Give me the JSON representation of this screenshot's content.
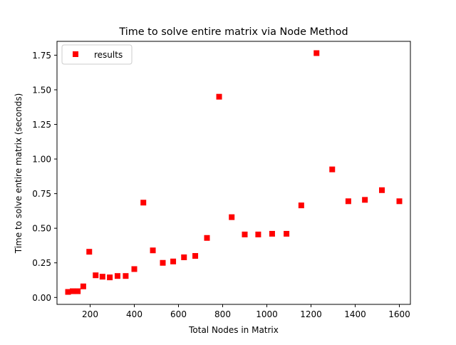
{
  "chart_data": {
    "type": "scatter",
    "title": "Time to solve entire matrix via Node Method",
    "xlabel": "Total Nodes in Matrix",
    "ylabel": "Time to solve entire matrix (seconds)",
    "xlim": [
      50,
      1650
    ],
    "ylim": [
      -0.05,
      1.85
    ],
    "xticks": [
      200,
      400,
      600,
      800,
      1000,
      1200,
      1400,
      1600
    ],
    "xtick_labels": [
      "200",
      "400",
      "600",
      "800",
      "1000",
      "1200",
      "1400",
      "1600"
    ],
    "yticks": [
      0.0,
      0.25,
      0.5,
      0.75,
      1.0,
      1.25,
      1.5,
      1.75
    ],
    "ytick_labels": [
      "0.00",
      "0.25",
      "0.50",
      "0.75",
      "1.00",
      "1.25",
      "1.50",
      "1.75"
    ],
    "grid": false,
    "legend_position": "top-left",
    "series": [
      {
        "name": "results",
        "color": "#ff0000",
        "marker": "square",
        "points": [
          {
            "x": 100,
            "y": 0.04
          },
          {
            "x": 121,
            "y": 0.045
          },
          {
            "x": 144,
            "y": 0.045
          },
          {
            "x": 169,
            "y": 0.08
          },
          {
            "x": 196,
            "y": 0.33
          },
          {
            "x": 225,
            "y": 0.16
          },
          {
            "x": 256,
            "y": 0.15
          },
          {
            "x": 289,
            "y": 0.145
          },
          {
            "x": 324,
            "y": 0.155
          },
          {
            "x": 361,
            "y": 0.155
          },
          {
            "x": 400,
            "y": 0.205
          },
          {
            "x": 441,
            "y": 0.685
          },
          {
            "x": 484,
            "y": 0.34
          },
          {
            "x": 529,
            "y": 0.25
          },
          {
            "x": 576,
            "y": 0.26
          },
          {
            "x": 625,
            "y": 0.29
          },
          {
            "x": 676,
            "y": 0.3
          },
          {
            "x": 729,
            "y": 0.43
          },
          {
            "x": 784,
            "y": 1.45
          },
          {
            "x": 841,
            "y": 0.58
          },
          {
            "x": 900,
            "y": 0.455
          },
          {
            "x": 961,
            "y": 0.455
          },
          {
            "x": 1024,
            "y": 0.46
          },
          {
            "x": 1089,
            "y": 0.46
          },
          {
            "x": 1156,
            "y": 0.665
          },
          {
            "x": 1225,
            "y": 1.765
          },
          {
            "x": 1296,
            "y": 0.925
          },
          {
            "x": 1369,
            "y": 0.695
          },
          {
            "x": 1444,
            "y": 0.705
          },
          {
            "x": 1521,
            "y": 0.775
          },
          {
            "x": 1600,
            "y": 0.695
          }
        ]
      }
    ]
  }
}
